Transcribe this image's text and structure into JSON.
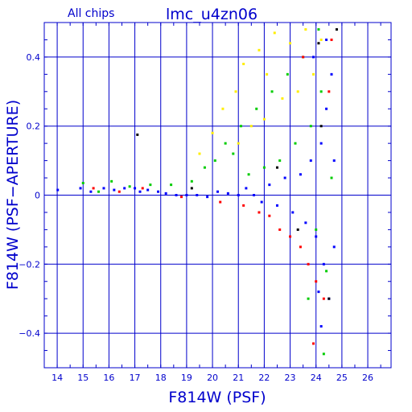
{
  "chart_data": {
    "type": "scatter",
    "title": "lmc_u4zn06",
    "subtitle": "All chips",
    "xlabel": "F814W (PSF)",
    "ylabel": "F814W (PSF−APERTURE)",
    "xlim": [
      13.5,
      26.9
    ],
    "ylim": [
      -0.5,
      0.5
    ],
    "x_ticks": [
      14,
      15,
      16,
      17,
      18,
      19,
      20,
      21,
      22,
      23,
      24,
      25,
      26
    ],
    "y_ticks": [
      -0.4,
      -0.2,
      0,
      0.2,
      0.4
    ],
    "y_tick_labels": [
      "−0.4",
      "−0.2",
      "0",
      "0.2",
      "0.4"
    ],
    "grid": true,
    "legend": "none",
    "colors": {
      "axes": "#0000cc",
      "chip1": "#0000ff",
      "chip2": "#00cc00",
      "chip3": "#ffee00",
      "chip4": "#ff0000",
      "other": "#000000"
    },
    "series": [
      {
        "color_key": "chip1",
        "points": [
          [
            14.02,
            0.015
          ],
          [
            14.9,
            0.02
          ],
          [
            15.3,
            0.01
          ],
          [
            15.8,
            0.02
          ],
          [
            16.2,
            0.015
          ],
          [
            16.6,
            0.02
          ],
          [
            17.0,
            0.02
          ],
          [
            17.2,
            0.01
          ],
          [
            17.5,
            0.015
          ],
          [
            17.9,
            0.01
          ],
          [
            18.2,
            0.005
          ],
          [
            18.6,
            0.0
          ],
          [
            19.0,
            0.0
          ],
          [
            19.4,
            0.0
          ],
          [
            19.8,
            -0.005
          ],
          [
            20.2,
            0.01
          ],
          [
            20.6,
            0.005
          ],
          [
            21.0,
            0.0
          ],
          [
            21.3,
            0.02
          ],
          [
            21.6,
            0.0
          ],
          [
            21.9,
            -0.02
          ],
          [
            22.2,
            0.03
          ],
          [
            22.5,
            -0.03
          ],
          [
            22.8,
            0.05
          ],
          [
            23.1,
            -0.05
          ],
          [
            23.4,
            0.06
          ],
          [
            23.6,
            -0.08
          ],
          [
            23.8,
            0.1
          ],
          [
            24.0,
            -0.12
          ],
          [
            24.2,
            0.15
          ],
          [
            24.3,
            -0.2
          ],
          [
            24.4,
            0.25
          ],
          [
            24.5,
            -0.3
          ],
          [
            24.6,
            0.35
          ],
          [
            24.2,
            -0.38
          ],
          [
            23.9,
            0.4
          ],
          [
            24.4,
            0.45
          ],
          [
            24.1,
            -0.28
          ],
          [
            24.7,
            0.1
          ],
          [
            24.7,
            -0.15
          ]
        ]
      },
      {
        "color_key": "chip2",
        "points": [
          [
            15.0,
            0.035
          ],
          [
            15.6,
            0.01
          ],
          [
            16.1,
            0.04
          ],
          [
            16.8,
            0.025
          ],
          [
            17.6,
            0.03
          ],
          [
            18.4,
            0.03
          ],
          [
            19.2,
            0.04
          ],
          [
            19.7,
            0.08
          ],
          [
            20.1,
            0.1
          ],
          [
            20.5,
            0.15
          ],
          [
            20.8,
            0.12
          ],
          [
            21.1,
            0.2
          ],
          [
            21.4,
            0.06
          ],
          [
            21.7,
            0.25
          ],
          [
            22.0,
            0.08
          ],
          [
            22.3,
            0.3
          ],
          [
            22.6,
            0.1
          ],
          [
            22.9,
            0.35
          ],
          [
            23.2,
            0.15
          ],
          [
            23.5,
            0.4
          ],
          [
            23.8,
            0.2
          ],
          [
            24.0,
            -0.1
          ],
          [
            24.2,
            0.3
          ],
          [
            24.4,
            -0.22
          ],
          [
            24.6,
            0.05
          ],
          [
            24.3,
            -0.46
          ],
          [
            23.7,
            -0.3
          ],
          [
            24.1,
            0.48
          ]
        ]
      },
      {
        "color_key": "chip3",
        "points": [
          [
            19.5,
            0.12
          ],
          [
            20.0,
            0.18
          ],
          [
            20.4,
            0.25
          ],
          [
            20.9,
            0.3
          ],
          [
            21.2,
            0.38
          ],
          [
            21.5,
            0.2
          ],
          [
            21.8,
            0.42
          ],
          [
            22.1,
            0.35
          ],
          [
            22.4,
            0.47
          ],
          [
            22.7,
            0.28
          ],
          [
            23.0,
            0.44
          ],
          [
            23.3,
            0.3
          ],
          [
            23.6,
            0.48
          ],
          [
            23.9,
            0.35
          ],
          [
            24.2,
            0.45
          ],
          [
            21.0,
            0.15
          ],
          [
            22.0,
            0.22
          ]
        ]
      },
      {
        "color_key": "chip4",
        "points": [
          [
            15.4,
            0.02
          ],
          [
            16.4,
            0.01
          ],
          [
            17.3,
            0.02
          ],
          [
            18.8,
            -0.005
          ],
          [
            20.3,
            -0.02
          ],
          [
            21.2,
            -0.03
          ],
          [
            21.8,
            -0.05
          ],
          [
            22.2,
            -0.06
          ],
          [
            22.6,
            -0.1
          ],
          [
            23.0,
            -0.12
          ],
          [
            23.4,
            -0.15
          ],
          [
            23.7,
            -0.2
          ],
          [
            24.0,
            -0.25
          ],
          [
            24.3,
            -0.3
          ],
          [
            23.9,
            -0.43
          ],
          [
            24.5,
            0.3
          ],
          [
            23.5,
            0.4
          ],
          [
            24.6,
            0.45
          ]
        ]
      },
      {
        "color_key": "other",
        "points": [
          [
            17.1,
            0.175
          ],
          [
            19.2,
            0.02
          ],
          [
            22.5,
            0.08
          ],
          [
            23.3,
            -0.1
          ],
          [
            24.2,
            0.2
          ],
          [
            24.5,
            -0.3
          ],
          [
            24.8,
            0.48
          ],
          [
            24.1,
            0.44
          ]
        ]
      }
    ]
  }
}
